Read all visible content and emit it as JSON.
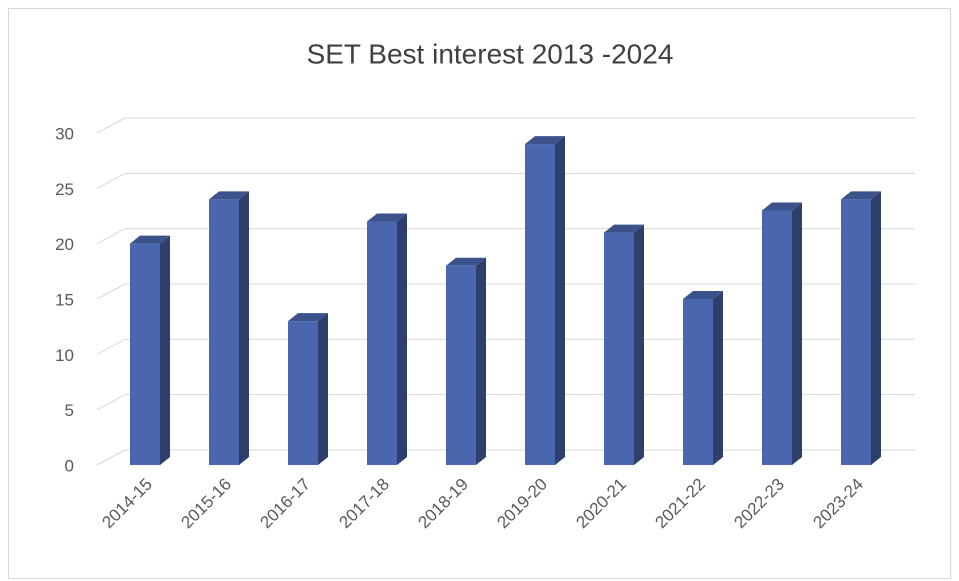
{
  "chart_data": {
    "type": "bar3d",
    "title": "SET Best interest 2013 -2024",
    "categories": [
      "2014-15",
      "2015-16",
      "2016-17",
      "2017-18",
      "2018-19",
      "2019-20",
      "2020-21",
      "2021-22",
      "2022-23",
      "2023-24"
    ],
    "values": [
      20,
      24,
      13,
      22,
      18,
      29,
      21,
      15,
      23,
      24
    ],
    "color": "#4a66ae",
    "ylim": [
      0,
      30
    ],
    "yticks": [
      0,
      5,
      10,
      15,
      20,
      25,
      30
    ],
    "grid": true
  }
}
